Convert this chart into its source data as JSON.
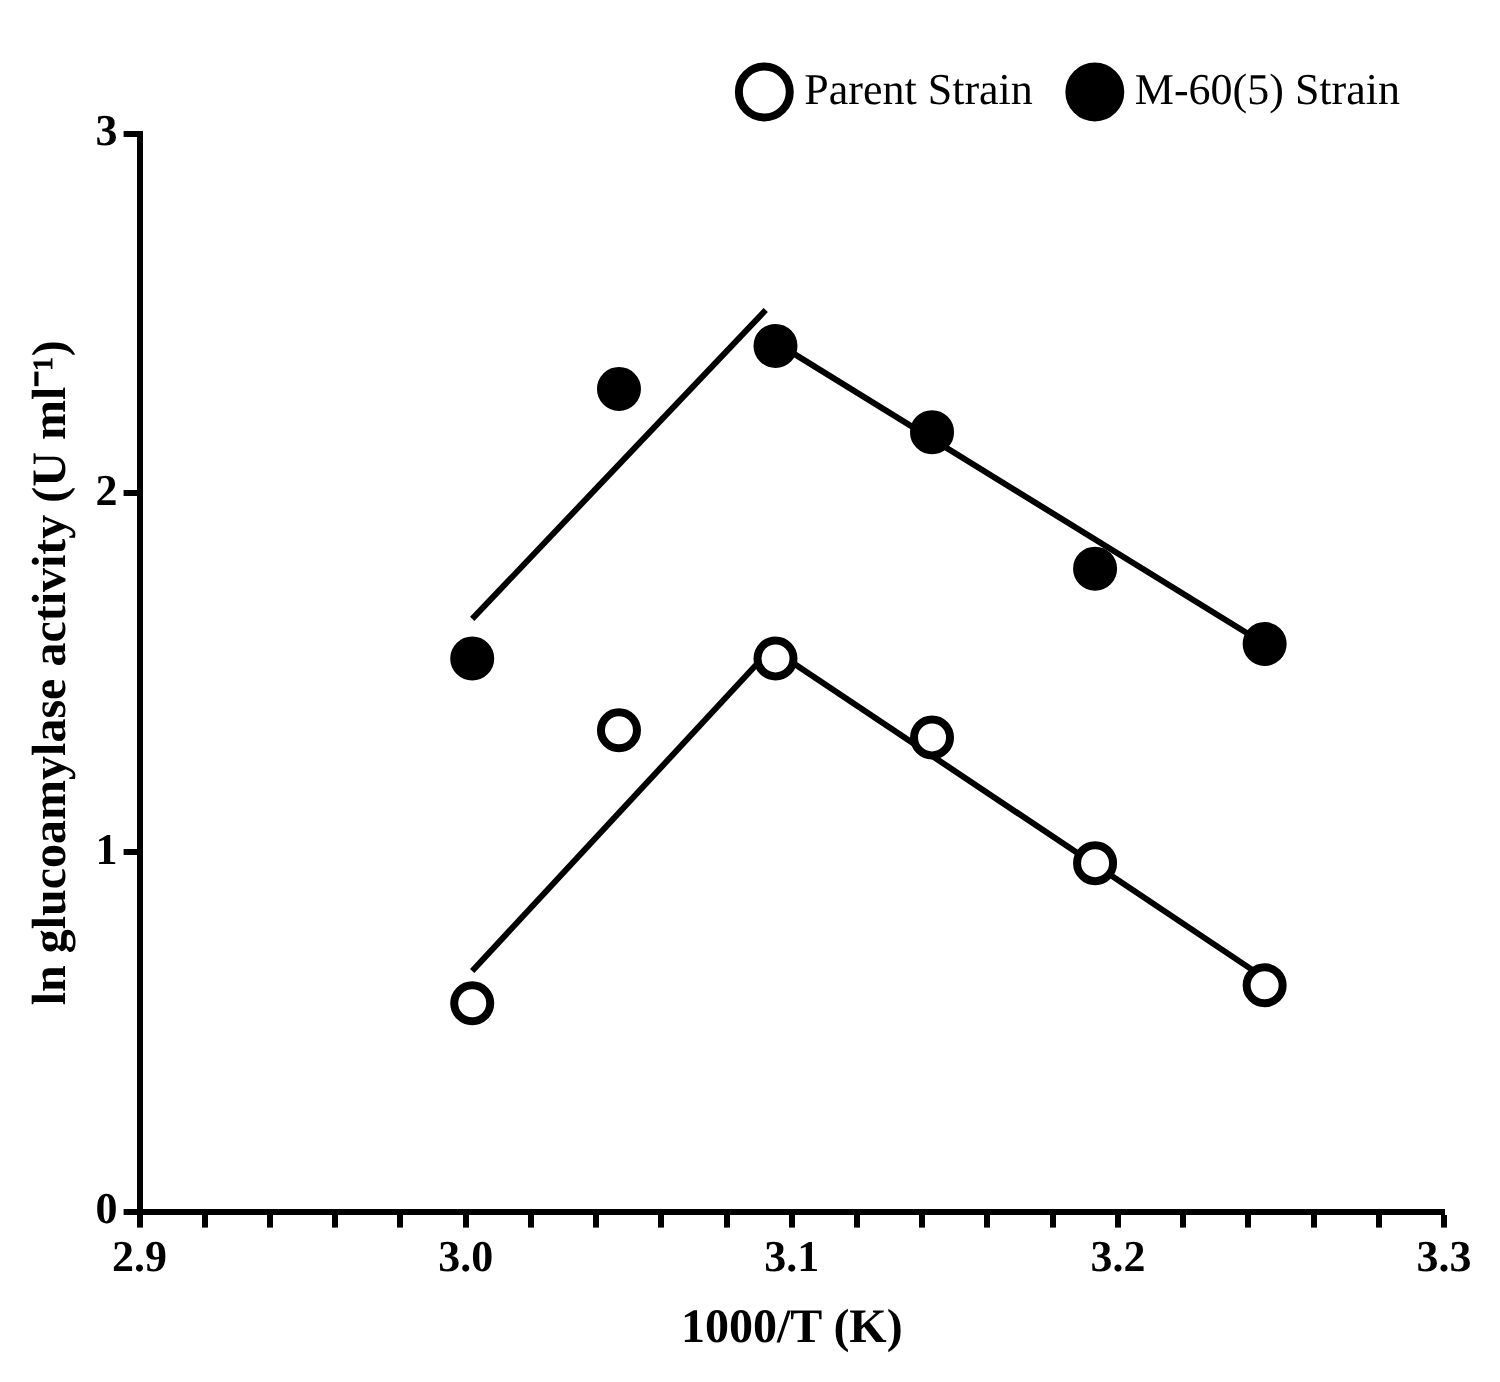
{
  "chart_data": {
    "type": "scatter",
    "xlabel": "1000/T (K)",
    "ylabel": "ln glucoamylase activity (U ml⁻¹)",
    "xlim": [
      2.9,
      3.3
    ],
    "xticks": [
      {
        "value": 2.9,
        "label": "2.9"
      },
      {
        "value": 2.92,
        "label": null
      },
      {
        "value": 2.94,
        "label": null
      },
      {
        "value": 2.96,
        "label": null
      },
      {
        "value": 2.98,
        "label": null
      },
      {
        "value": 3.0,
        "label": "3.0"
      },
      {
        "value": 3.02,
        "label": null
      },
      {
        "value": 3.04,
        "label": null
      },
      {
        "value": 3.06,
        "label": null
      },
      {
        "value": 3.08,
        "label": null
      },
      {
        "value": 3.1,
        "label": "3.1"
      },
      {
        "value": 3.12,
        "label": null
      },
      {
        "value": 3.14,
        "label": null
      },
      {
        "value": 3.16,
        "label": null
      },
      {
        "value": 3.18,
        "label": null
      },
      {
        "value": 3.2,
        "label": "3.2"
      },
      {
        "value": 3.22,
        "label": null
      },
      {
        "value": 3.24,
        "label": null
      },
      {
        "value": 3.26,
        "label": null
      },
      {
        "value": 3.28,
        "label": null
      },
      {
        "value": 3.3,
        "label": "3.3"
      }
    ],
    "ylim": [
      0,
      3
    ],
    "yticks": [
      0,
      1,
      2,
      3
    ],
    "grid": false,
    "legend": "top right",
    "marker": "circle",
    "series": [
      {
        "name": "Parent Strain",
        "type": "scatter",
        "color": "#000000",
        "x": [
          3.002,
          3.047,
          3.095,
          3.143,
          3.193,
          3.245
        ],
        "values": [
          0.58,
          1.34,
          1.54,
          1.32,
          0.97,
          0.63
        ]
      },
      {
        "name": "M-60(5) Strain",
        "type": "scatter",
        "color": "#000000",
        "x": [
          3.002,
          3.047,
          3.095,
          3.143,
          3.193,
          3.245
        ],
        "values": [
          1.54,
          2.29,
          2.41,
          2.17,
          1.79,
          1.58
        ]
      },
      {
        "type": "line",
        "color": "#000000",
        "marker": "none",
        "x": [
          3.002,
          3.095
        ],
        "values": [
          0.67,
          1.58
        ]
      },
      {
        "type": "line",
        "color": "#000000",
        "marker": "none",
        "x": [
          3.095,
          3.245
        ],
        "values": [
          1.56,
          0.65
        ]
      },
      {
        "type": "line",
        "color": "#000000",
        "marker": "none",
        "x": [
          3.002,
          3.092
        ],
        "values": [
          1.65,
          2.51
        ]
      },
      {
        "type": "line",
        "color": "#000000",
        "marker": "none",
        "x": [
          3.095,
          3.245
        ],
        "values": [
          2.42,
          1.58
        ]
      }
    ]
  }
}
